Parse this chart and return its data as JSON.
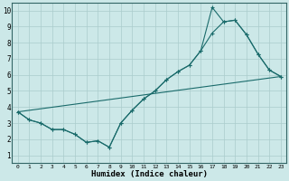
{
  "xlabel": "Humidex (Indice chaleur)",
  "bg_color": "#cce8e8",
  "line_color": "#1a6b6b",
  "grid_color": "#aacccc",
  "xlim": [
    -0.5,
    23.5
  ],
  "ylim": [
    0.5,
    10.5
  ],
  "yticks": [
    1,
    2,
    3,
    4,
    5,
    6,
    7,
    8,
    9,
    10
  ],
  "xticks": [
    0,
    1,
    2,
    3,
    4,
    5,
    6,
    7,
    8,
    9,
    10,
    11,
    12,
    13,
    14,
    15,
    16,
    17,
    18,
    19,
    20,
    21,
    22,
    23
  ],
  "line1_x": [
    0,
    1,
    2,
    3,
    4,
    5,
    6,
    7,
    8,
    9,
    10,
    11,
    12,
    13,
    14,
    15,
    16,
    17,
    18,
    19,
    20,
    21,
    22,
    23
  ],
  "line1_y": [
    3.7,
    3.2,
    3.0,
    2.6,
    2.6,
    2.3,
    1.8,
    1.9,
    1.5,
    3.0,
    3.8,
    4.5,
    5.0,
    5.7,
    6.2,
    6.6,
    7.5,
    8.6,
    9.3,
    9.4,
    8.5,
    7.3,
    6.3,
    5.9
  ],
  "line2_x": [
    0,
    1,
    2,
    3,
    4,
    5,
    6,
    7,
    8,
    9,
    10,
    11,
    12,
    13,
    14,
    15,
    16,
    17,
    18,
    19,
    20,
    21,
    22,
    23
  ],
  "line2_y": [
    3.7,
    3.2,
    3.0,
    2.6,
    2.6,
    2.3,
    1.8,
    1.9,
    1.5,
    3.0,
    3.8,
    4.5,
    5.0,
    5.7,
    6.2,
    6.6,
    7.5,
    10.2,
    9.3,
    9.4,
    8.5,
    7.3,
    6.3,
    5.9
  ],
  "line3_x": [
    0,
    23
  ],
  "line3_y": [
    3.7,
    5.9
  ]
}
